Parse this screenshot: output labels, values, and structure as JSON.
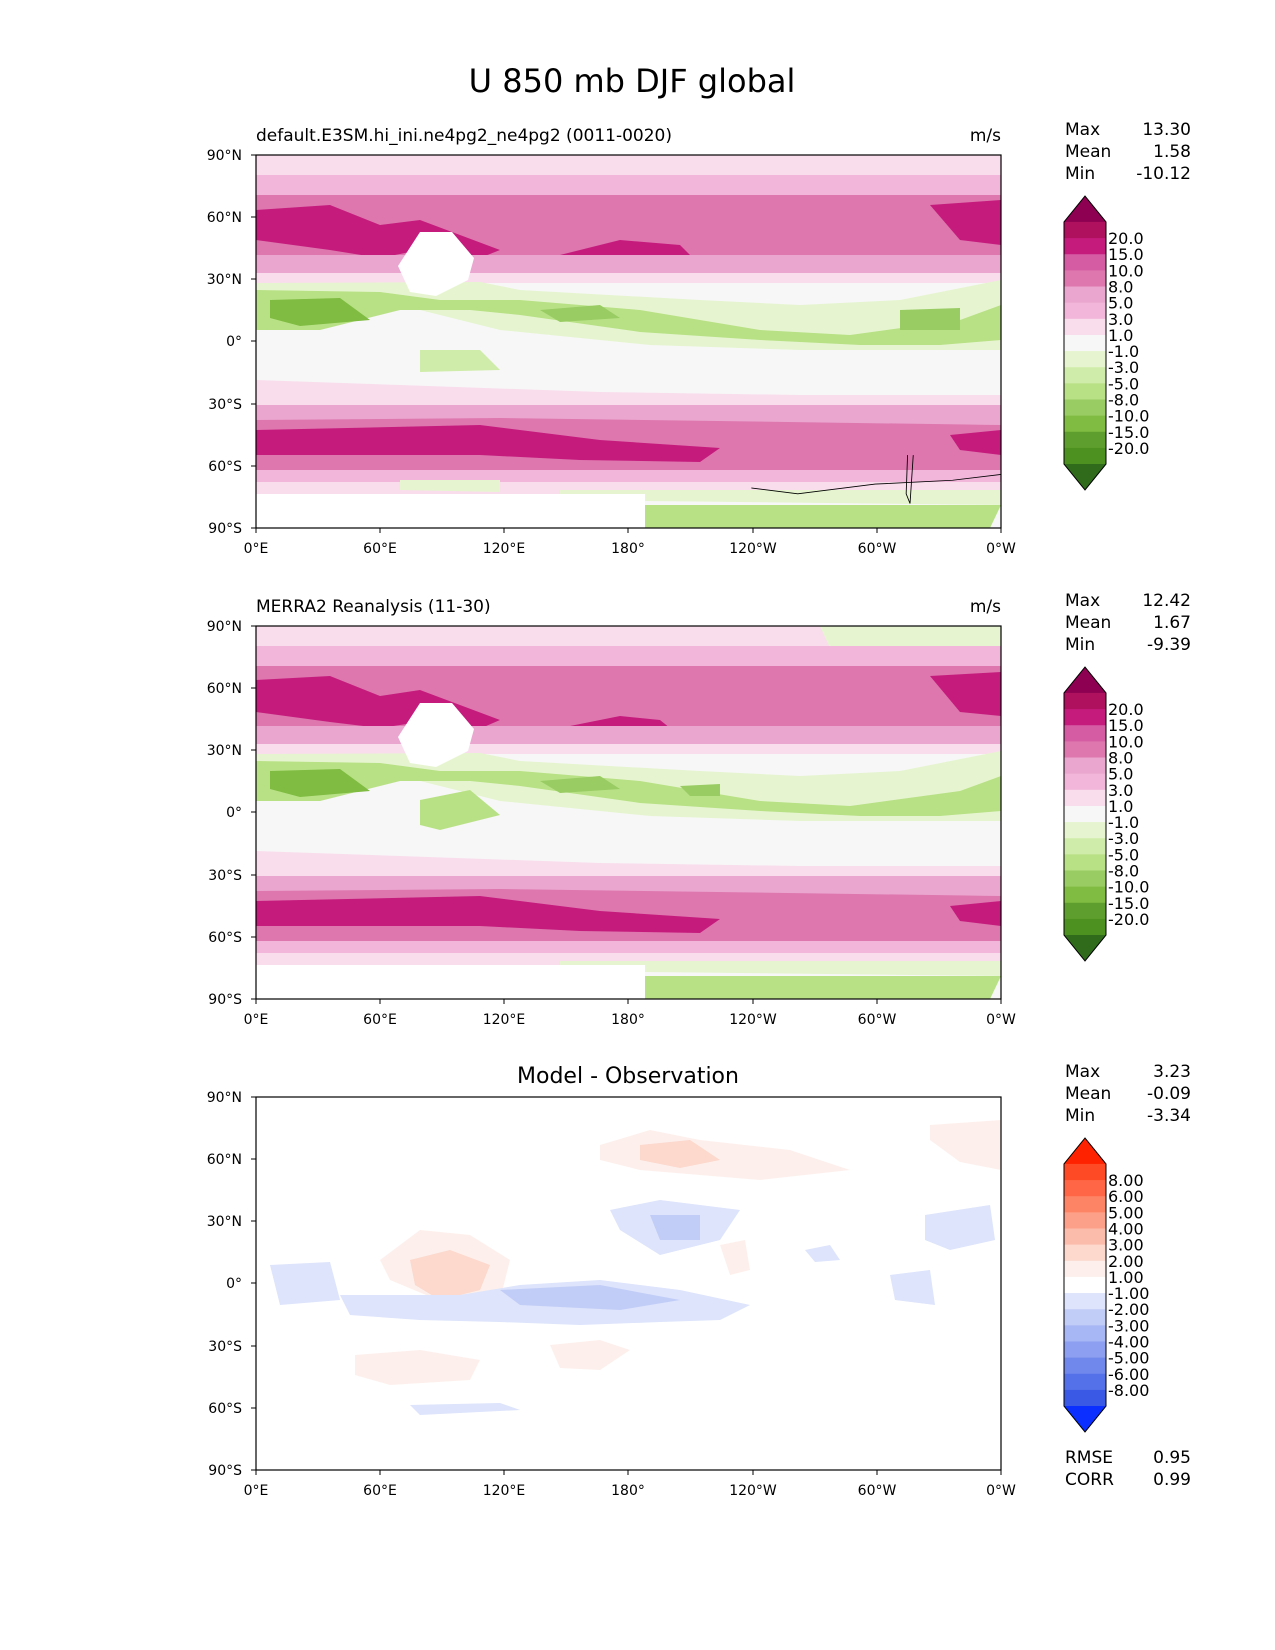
{
  "title": "U 850 mb DJF global",
  "panels": [
    {
      "id": "model",
      "left_title": "default.E3SM.hi_ini.ne4pg2_ne4pg2 (0011-0020)",
      "center_title": "",
      "units": "m/s",
      "stats": [
        {
          "label": "Max",
          "value": "13.30"
        },
        {
          "label": "Mean",
          "value": "1.58"
        },
        {
          "label": "Min",
          "value": "-10.12"
        }
      ],
      "colorbar": "field"
    },
    {
      "id": "obs",
      "left_title": "MERRA2 Reanalysis (11-30)",
      "center_title": "",
      "units": "m/s",
      "stats": [
        {
          "label": "Max",
          "value": "12.42"
        },
        {
          "label": "Mean",
          "value": "1.67"
        },
        {
          "label": "Min",
          "value": "-9.39"
        }
      ],
      "colorbar": "field"
    },
    {
      "id": "diff",
      "left_title": "",
      "center_title": "Model - Observation",
      "units": "",
      "stats": [
        {
          "label": "Max",
          "value": "3.23"
        },
        {
          "label": "Mean",
          "value": "-0.09"
        },
        {
          "label": "Min",
          "value": "-3.34"
        }
      ],
      "extra_stats": [
        {
          "label": "RMSE",
          "value": "0.95"
        },
        {
          "label": "CORR",
          "value": "0.99"
        }
      ],
      "colorbar": "diff"
    }
  ],
  "axes": {
    "lat_ticks": [
      "90°N",
      "60°N",
      "30°N",
      "0°",
      "30°S",
      "60°S",
      "90°S"
    ],
    "lon_ticks": [
      "0°E",
      "60°E",
      "120°E",
      "180°",
      "120°W",
      "60°W",
      "0°W"
    ]
  },
  "colorbars": {
    "field": {
      "labels": [
        "20.0",
        "15.0",
        "10.0",
        "8.0",
        "5.0",
        "3.0",
        "1.0",
        "-1.0",
        "-3.0",
        "-5.0",
        "-8.0",
        "-10.0",
        "-15.0",
        "-20.0"
      ],
      "colors": [
        "#8e0152",
        "#b0115f",
        "#c51b7d",
        "#d55ba3",
        "#de77ae",
        "#eaa6cf",
        "#f1b6da",
        "#f9ddec",
        "#f7f7f7",
        "#e6f5d0",
        "#d0ecaa",
        "#b8e186",
        "#99cc63",
        "#7fbc41",
        "#5e9e2e",
        "#4d9221",
        "#2f6b1a"
      ]
    },
    "diff": {
      "labels": [
        "8.00",
        "6.00",
        "5.00",
        "4.00",
        "3.00",
        "2.00",
        "1.00",
        "-1.00",
        "-2.00",
        "-3.00",
        "-4.00",
        "-5.00",
        "-6.00",
        "-8.00"
      ],
      "colors": [
        "#ff2200",
        "#ff4a26",
        "#fe6645",
        "#fe8466",
        "#fda08a",
        "#fcbcac",
        "#fcd8cd",
        "#fdf0ec",
        "#ffffff",
        "#dde4fb",
        "#c2cdf7",
        "#a7b6f4",
        "#8c9ff0",
        "#7088ec",
        "#5571e9",
        "#3a5ae5",
        "#0a2fff"
      ]
    }
  },
  "chart_data": [
    {
      "type": "heatmap",
      "title": "default.E3SM.hi_ini.ne4pg2_ne4pg2 (0011-0020)",
      "variable": "U 850 mb DJF global",
      "units": "m/s",
      "lon_range": [
        0,
        360
      ],
      "lat_range": [
        -90,
        90
      ],
      "levels": [
        -20,
        -15,
        -10,
        -8,
        -5,
        -3,
        -1,
        1,
        3,
        5,
        8,
        10,
        15,
        20
      ],
      "max": 13.3,
      "mean": 1.58,
      "min": -10.12,
      "features": [
        {
          "lon": [
            0,
            360
          ],
          "lat": [
            38,
            62
          ],
          "value": 10
        },
        {
          "lon": [
            0,
            75
          ],
          "lat": [
            40,
            58
          ],
          "value": 13
        },
        {
          "lon": [
            150,
            200
          ],
          "lat": [
            30,
            42
          ],
          "value": 12
        },
        {
          "lon": [
            330,
            360
          ],
          "lat": [
            42,
            60
          ],
          "value": 13
        },
        {
          "lon": [
            0,
            60
          ],
          "lat": [
            5,
            22
          ],
          "value": -8
        },
        {
          "lon": [
            60,
            120
          ],
          "lat": [
            -18,
            -5
          ],
          "value": -3
        },
        {
          "lon": [
            120,
            340
          ],
          "lat": [
            -5,
            25
          ],
          "value": -6
        },
        {
          "lon": [
            0,
            360
          ],
          "lat": [
            -60,
            -38
          ],
          "value": 11
        },
        {
          "lon": [
            185,
            360
          ],
          "lat": [
            -90,
            -62
          ],
          "value": -5
        }
      ]
    },
    {
      "type": "heatmap",
      "title": "MERRA2 Reanalysis (11-30)",
      "variable": "U 850 mb DJF global",
      "units": "m/s",
      "lon_range": [
        0,
        360
      ],
      "lat_range": [
        -90,
        90
      ],
      "levels": [
        -20,
        -15,
        -10,
        -8,
        -5,
        -3,
        -1,
        1,
        3,
        5,
        8,
        10,
        15,
        20
      ],
      "max": 12.42,
      "mean": 1.67,
      "min": -9.39,
      "features": [
        {
          "lon": [
            0,
            360
          ],
          "lat": [
            38,
            62
          ],
          "value": 9
        },
        {
          "lon": [
            0,
            75
          ],
          "lat": [
            40,
            58
          ],
          "value": 12
        },
        {
          "lon": [
            150,
            200
          ],
          "lat": [
            30,
            42
          ],
          "value": 11
        },
        {
          "lon": [
            330,
            360
          ],
          "lat": [
            42,
            60
          ],
          "value": 12
        },
        {
          "lon": [
            0,
            60
          ],
          "lat": [
            5,
            22
          ],
          "value": -8
        },
        {
          "lon": [
            75,
            125
          ],
          "lat": [
            -10,
            10
          ],
          "value": -5
        },
        {
          "lon": [
            120,
            340
          ],
          "lat": [
            0,
            25
          ],
          "value": -6
        },
        {
          "lon": [
            0,
            360
          ],
          "lat": [
            -60,
            -38
          ],
          "value": 11
        },
        {
          "lon": [
            185,
            360
          ],
          "lat": [
            -90,
            -62
          ],
          "value": -5
        }
      ]
    },
    {
      "type": "heatmap",
      "title": "Model - Observation",
      "units": "m/s",
      "lon_range": [
        0,
        360
      ],
      "lat_range": [
        -90,
        90
      ],
      "levels": [
        -8,
        -6,
        -5,
        -4,
        -3,
        -2,
        -1,
        1,
        2,
        3,
        4,
        5,
        6,
        8
      ],
      "max": 3.23,
      "mean": -0.09,
      "min": -3.34,
      "rmse": 0.95,
      "corr": 0.99,
      "features": [
        {
          "lon": [
            165,
            250
          ],
          "lat": [
            52,
            72
          ],
          "value": 2
        },
        {
          "lon": [
            315,
            360
          ],
          "lat": [
            58,
            78
          ],
          "value": 1
        },
        {
          "lon": [
            170,
            230
          ],
          "lat": [
            20,
            40
          ],
          "value": -2
        },
        {
          "lon": [
            320,
            345
          ],
          "lat": [
            18,
            38
          ],
          "value": -1
        },
        {
          "lon": [
            60,
            130
          ],
          "lat": [
            -5,
            18
          ],
          "value": 3
        },
        {
          "lon": [
            60,
            240
          ],
          "lat": [
            -18,
            -5
          ],
          "value": -2
        },
        {
          "lon": [
            50,
            110
          ],
          "lat": [
            -52,
            -35
          ],
          "value": 1
        },
        {
          "lon": [
            80,
            130
          ],
          "lat": [
            -70,
            -65
          ],
          "value": -1
        }
      ]
    }
  ]
}
